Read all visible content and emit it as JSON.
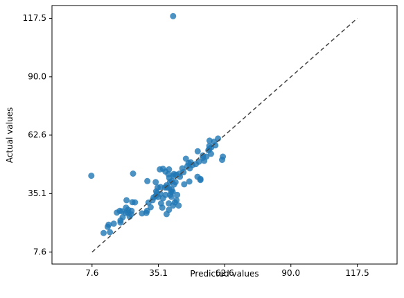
{
  "chart_data": {
    "type": "scatter",
    "xlabel": "Predicted values",
    "ylabel": "Actual values",
    "xlim": [
      -9.0,
      134.0
    ],
    "ylim": [
      2.0,
      123.5
    ],
    "xticks": [
      7.6,
      35.1,
      62.6,
      90.0,
      117.5
    ],
    "yticks": [
      7.6,
      35.1,
      62.6,
      90.0,
      117.5
    ],
    "xtick_labels": [
      "7.6",
      "35.1",
      "62.6",
      "90.0",
      "117.5"
    ],
    "ytick_labels": [
      "7.6",
      "35.1",
      "62.6",
      "90.0",
      "117.5"
    ],
    "grid": false,
    "reference_line": {
      "style": "dashed",
      "color": "#444444",
      "from": [
        7.6,
        7.6
      ],
      "to": [
        117.5,
        117.5
      ]
    },
    "marker_color": "#1f77b4",
    "points": [
      [
        41.2,
        118.5
      ],
      [
        7.3,
        43.5
      ],
      [
        24.6,
        44.5
      ],
      [
        12.4,
        16.6
      ],
      [
        15.0,
        17.0
      ],
      [
        14.1,
        19.5
      ],
      [
        14.5,
        20.5
      ],
      [
        16.6,
        21.0
      ],
      [
        19.4,
        21.5
      ],
      [
        19.4,
        22.5
      ],
      [
        20.3,
        24.0
      ],
      [
        17.9,
        26.2
      ],
      [
        19.1,
        27.0
      ],
      [
        20.1,
        26.8
      ],
      [
        21.5,
        26.0
      ],
      [
        22.5,
        26.1
      ],
      [
        23.8,
        25.4
      ],
      [
        22.6,
        27.5
      ],
      [
        21.7,
        28.5
      ],
      [
        24.0,
        27.0
      ],
      [
        23.2,
        24.3
      ],
      [
        28.3,
        25.8
      ],
      [
        30.4,
        27.0
      ],
      [
        31.9,
        28.7
      ],
      [
        31.0,
        30.9
      ],
      [
        32.7,
        32.0
      ],
      [
        33.1,
        33.3
      ],
      [
        34.0,
        34.0
      ],
      [
        34.5,
        35.5
      ],
      [
        35.0,
        33.5
      ],
      [
        36.2,
        30.5
      ],
      [
        36.7,
        28.5
      ],
      [
        37.0,
        32.9
      ],
      [
        38.1,
        34.5
      ],
      [
        39.5,
        27.5
      ],
      [
        39.4,
        30.5
      ],
      [
        40.0,
        34.5
      ],
      [
        40.5,
        33.6
      ],
      [
        41.2,
        29.5
      ],
      [
        41.9,
        31.0
      ],
      [
        42.6,
        32.0
      ],
      [
        43.5,
        29.5
      ],
      [
        42.9,
        34.5
      ],
      [
        41.0,
        36.0
      ],
      [
        40.6,
        37.0
      ],
      [
        39.4,
        37.8
      ],
      [
        38.5,
        38.0
      ],
      [
        37.8,
        38.0
      ],
      [
        36.0,
        38.2
      ],
      [
        34.8,
        38.0
      ],
      [
        38.5,
        39.0
      ],
      [
        39.9,
        40.5
      ],
      [
        40.7,
        41.0
      ],
      [
        41.6,
        39.4
      ],
      [
        42.2,
        40.5
      ],
      [
        39.6,
        42.5
      ],
      [
        41.3,
        43.5
      ],
      [
        42.5,
        44.0
      ],
      [
        43.8,
        44.5
      ],
      [
        45.5,
        45.2
      ],
      [
        45.0,
        47.0
      ],
      [
        47.1,
        48.0
      ],
      [
        49.2,
        48.5
      ],
      [
        50.6,
        49.0
      ],
      [
        51.9,
        50.1
      ],
      [
        48.5,
        49.8
      ],
      [
        53.6,
        52.0
      ],
      [
        55.0,
        52.5
      ],
      [
        56.9,
        53.8
      ],
      [
        55.8,
        55.5
      ],
      [
        56.2,
        56.0
      ],
      [
        57.0,
        56.8
      ],
      [
        56.2,
        57.5
      ],
      [
        58.7,
        57.8
      ],
      [
        59.8,
        61.0
      ],
      [
        58.1,
        59.5
      ],
      [
        56.3,
        60.0
      ],
      [
        51.4,
        55.0
      ],
      [
        48.1,
        47.0
      ],
      [
        51.3,
        43.0
      ],
      [
        52.5,
        42.0
      ],
      [
        52.5,
        41.5
      ],
      [
        47.9,
        40.8
      ],
      [
        45.8,
        39.5
      ],
      [
        34.0,
        40.5
      ],
      [
        30.5,
        41.0
      ],
      [
        35.7,
        46.5
      ],
      [
        37.0,
        46.8
      ],
      [
        39.5,
        46.5
      ],
      [
        39.2,
        44.2
      ],
      [
        38.0,
        45.5
      ],
      [
        53.5,
        53.0
      ],
      [
        61.8,
        52.5
      ],
      [
        61.5,
        51.0
      ],
      [
        54.1,
        50.5
      ],
      [
        30.1,
        26.0
      ],
      [
        24.3,
        31.1
      ],
      [
        21.9,
        32.0
      ],
      [
        25.4,
        31.0
      ],
      [
        38.5,
        25.5
      ],
      [
        34.2,
        36.2
      ],
      [
        35.9,
        35.0
      ],
      [
        41.5,
        44.3
      ],
      [
        44.0,
        43.0
      ],
      [
        40.4,
        36.0
      ],
      [
        47.6,
        49.5
      ],
      [
        46.5,
        51.5
      ]
    ]
  }
}
